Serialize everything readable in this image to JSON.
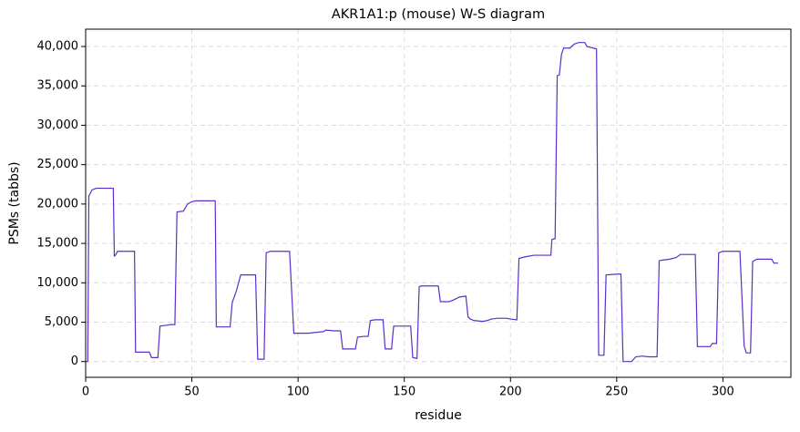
{
  "chart_data": {
    "type": "line",
    "title": "AKR1A1:p (mouse) W-S diagram",
    "xlabel": "residue",
    "ylabel": "PSMs (tabbs)",
    "color": "#5b2fc9",
    "grid": true,
    "xlim": [
      0,
      332
    ],
    "ylim": [
      -2000,
      42200
    ],
    "xticks": [
      0,
      50,
      100,
      150,
      200,
      250,
      300
    ],
    "yticks": [
      0,
      {
        "value": 5000,
        "label": "5,000"
      },
      {
        "value": 10000,
        "label": "10,000"
      },
      {
        "value": 15000,
        "label": "15,000"
      },
      {
        "value": 20000,
        "label": "20,000"
      },
      {
        "value": 25000,
        "label": "25,000"
      },
      {
        "value": 30000,
        "label": "30,000"
      },
      {
        "value": 35000,
        "label": "35,000"
      },
      {
        "value": 40000,
        "label": "40,000"
      }
    ],
    "x": [
      0,
      1,
      1.5,
      3,
      5,
      13,
      13.5,
      14,
      15,
      23,
      23.5,
      30,
      31,
      34,
      35,
      38,
      40,
      42,
      43,
      46,
      48,
      50,
      52,
      61,
      61.5,
      68,
      69,
      71,
      73,
      80,
      81,
      84,
      85,
      87,
      96,
      98,
      105,
      108,
      112,
      113,
      117,
      120,
      121,
      127,
      128,
      131,
      133,
      134,
      136,
      140,
      141,
      144,
      145,
      153,
      154,
      156,
      157,
      158,
      166,
      167,
      171,
      173,
      176,
      179,
      180,
      181,
      183,
      187,
      189,
      191,
      194,
      198,
      200,
      203,
      204,
      207,
      211,
      219,
      219.5,
      221,
      222,
      223,
      224,
      225,
      228,
      230,
      232,
      235,
      236,
      239,
      240.5,
      241.5,
      244,
      245,
      250,
      252,
      253,
      257,
      259,
      262,
      265,
      269,
      270,
      272,
      275,
      278,
      280,
      287,
      288,
      294,
      295,
      297,
      298,
      300,
      308,
      310,
      311,
      313,
      314,
      316,
      323,
      324,
      326
    ],
    "values": [
      0,
      0,
      21000,
      21800,
      22000,
      22000,
      13400,
      13500,
      14000,
      14000,
      1200,
      1200,
      500,
      500,
      4500,
      4600,
      4700,
      4700,
      19000,
      19100,
      20000,
      20300,
      20400,
      20400,
      4400,
      4400,
      7500,
      9000,
      11000,
      11000,
      300,
      300,
      13800,
      14000,
      14000,
      3600,
      3600,
      3700,
      3800,
      4000,
      3900,
      3900,
      1600,
      1600,
      3100,
      3200,
      3200,
      5200,
      5300,
      5300,
      1600,
      1600,
      4500,
      4500,
      500,
      400,
      9500,
      9600,
      9600,
      7600,
      7600,
      7800,
      8200,
      8300,
      5700,
      5400,
      5200,
      5100,
      5200,
      5400,
      5500,
      5500,
      5400,
      5300,
      13100,
      13300,
      13500,
      13500,
      15500,
      15600,
      36300,
      36400,
      39000,
      39800,
      39800,
      40300,
      40500,
      40500,
      40000,
      39800,
      39700,
      800,
      800,
      11000,
      11100,
      11100,
      0,
      0,
      600,
      700,
      600,
      600,
      12800,
      12900,
      13000,
      13200,
      13600,
      13600,
      1900,
      1900,
      2300,
      2300,
      13800,
      14000,
      14000,
      2000,
      1100,
      1100,
      12700,
      13000,
      13000,
      12500,
      12500
    ]
  }
}
